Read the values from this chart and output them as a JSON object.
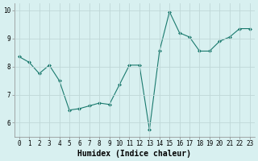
{
  "x": [
    0,
    1,
    2,
    3,
    4,
    5,
    6,
    7,
    8,
    9,
    10,
    11,
    12,
    13,
    14,
    15,
    16,
    17,
    18,
    19,
    20,
    21,
    22,
    23
  ],
  "y": [
    8.35,
    8.15,
    7.75,
    8.05,
    7.5,
    6.45,
    6.5,
    6.6,
    6.7,
    6.65,
    7.35,
    8.05,
    8.05,
    5.75,
    8.55,
    9.95,
    9.2,
    9.05,
    8.55,
    8.55,
    8.9,
    9.05,
    9.35,
    9.35
  ],
  "line_color": "#1a7a6e",
  "marker": "D",
  "marker_size": 2.0,
  "bg_color": "#d8f0f0",
  "grid_color": "#c0d8d8",
  "xlabel": "Humidex (Indice chaleur)",
  "ylim": [
    5.5,
    10.25
  ],
  "xlim": [
    -0.5,
    23.5
  ],
  "yticks": [
    6,
    7,
    8,
    9,
    10
  ],
  "xticks": [
    0,
    1,
    2,
    3,
    4,
    5,
    6,
    7,
    8,
    9,
    10,
    11,
    12,
    13,
    14,
    15,
    16,
    17,
    18,
    19,
    20,
    21,
    22,
    23
  ],
  "tick_fontsize": 5.5,
  "xlabel_fontsize": 7.0,
  "linewidth": 0.8
}
